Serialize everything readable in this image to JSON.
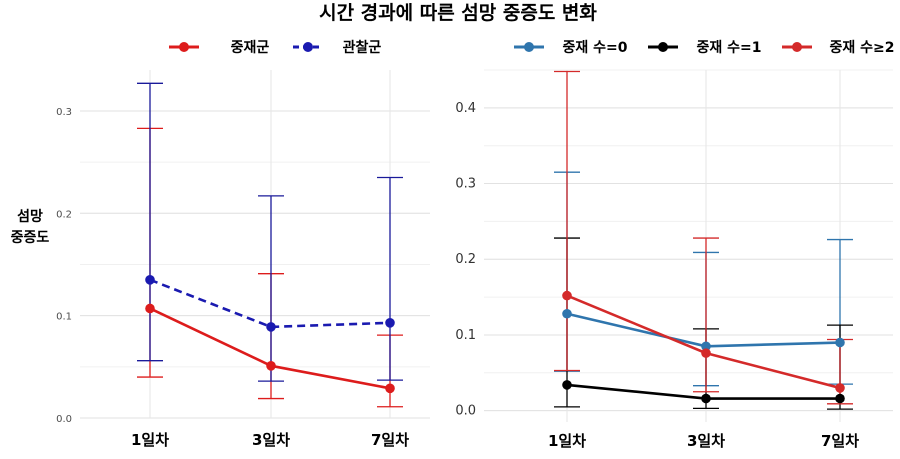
{
  "figure": {
    "title": "시간 경과에 따른 섬망 중증도 변화"
  },
  "chart_data": [
    {
      "type": "line",
      "panel": "left",
      "ylabel": [
        "섬망",
        "중증도"
      ],
      "categories": [
        "1일차",
        "3일차",
        "7일차"
      ],
      "ylim": [
        0,
        0.34
      ],
      "yticks": [
        0.0,
        0.1,
        0.2,
        0.3
      ],
      "ytick_labels": [
        "0.0",
        "0.1",
        "0.2",
        "0.3"
      ],
      "grid": true,
      "legend_position": "top",
      "series": [
        {
          "name": "중재군",
          "color": "#dd1c1c",
          "dash": false,
          "errorbar_color": "#dd1c1c",
          "values": [
            0.107,
            0.051,
            0.029
          ],
          "lower": [
            0.04,
            0.019,
            0.011
          ],
          "upper": [
            0.283,
            0.141,
            0.081
          ]
        },
        {
          "name": "관찰군",
          "color": "#1a1ab0",
          "dash": true,
          "errorbar_color": "#1a1a9a",
          "values": [
            0.135,
            0.089,
            0.093
          ],
          "lower": [
            0.056,
            0.036,
            0.037
          ],
          "upper": [
            0.327,
            0.217,
            0.235
          ]
        }
      ]
    },
    {
      "type": "line",
      "panel": "right",
      "ylabel": "",
      "categories": [
        "1일차",
        "3일차",
        "7일차"
      ],
      "ylim": [
        -0.015,
        0.45
      ],
      "yticks": [
        0.0,
        0.1,
        0.2,
        0.3,
        0.4
      ],
      "ytick_labels": [
        "0.0",
        "0.1",
        "0.2",
        "0.3",
        "0.4"
      ],
      "grid": true,
      "legend_position": "top",
      "series": [
        {
          "name": "중재 수=0",
          "color": "#2f75ad",
          "errorbar_color": "#2f75ad",
          "values": [
            0.128,
            0.085,
            0.09
          ],
          "lower": [
            0.052,
            0.033,
            0.035
          ],
          "upper": [
            0.315,
            0.209,
            0.226
          ]
        },
        {
          "name": "중재 수=1",
          "color": "#000000",
          "errorbar_color": "#000000",
          "values": [
            0.034,
            0.016,
            0.016
          ],
          "lower": [
            0.005,
            0.003,
            0.002
          ],
          "upper": [
            0.228,
            0.108,
            0.113
          ]
        },
        {
          "name": "중재 수≥2",
          "color": "#d42a2a",
          "errorbar_color": "#d42a2a",
          "values": [
            0.152,
            0.076,
            0.03
          ],
          "lower": [
            0.053,
            0.025,
            0.009
          ],
          "upper": [
            0.448,
            0.228,
            0.094
          ]
        }
      ]
    }
  ]
}
